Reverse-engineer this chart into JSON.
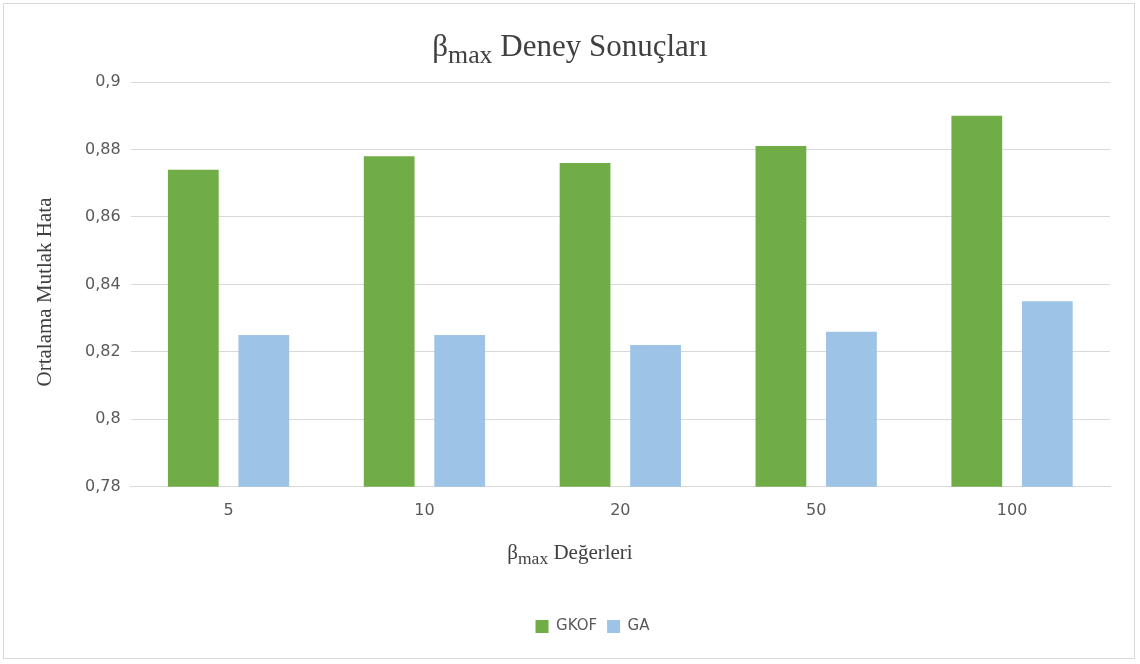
{
  "chart_data": {
    "type": "bar",
    "title": "β$_{max}$ Deney Sonuçları",
    "xlabel": "β$_{max}$ Değerleri",
    "ylabel": "Ortalama Mutlak Hata",
    "categories": [
      "5",
      "10",
      "20",
      "50",
      "100"
    ],
    "series": [
      {
        "name": "GKOF",
        "color": "#70ad47",
        "values": [
          0.874,
          0.878,
          0.876,
          0.881,
          0.89
        ]
      },
      {
        "name": "GA",
        "color": "#9dc3e6",
        "values": [
          0.825,
          0.825,
          0.822,
          0.826,
          0.835
        ]
      }
    ],
    "ylim": [
      0.78,
      0.9
    ],
    "yticks": [
      {
        "value": 0.78,
        "label": "0,78"
      },
      {
        "value": 0.8,
        "label": "0,8"
      },
      {
        "value": 0.82,
        "label": "0,82"
      },
      {
        "value": 0.84,
        "label": "0,84"
      },
      {
        "value": 0.86,
        "label": "0,86"
      },
      {
        "value": 0.88,
        "label": "0,88"
      },
      {
        "value": 0.9,
        "label": "0,9"
      }
    ],
    "grid": "y",
    "legend": "bottom"
  }
}
